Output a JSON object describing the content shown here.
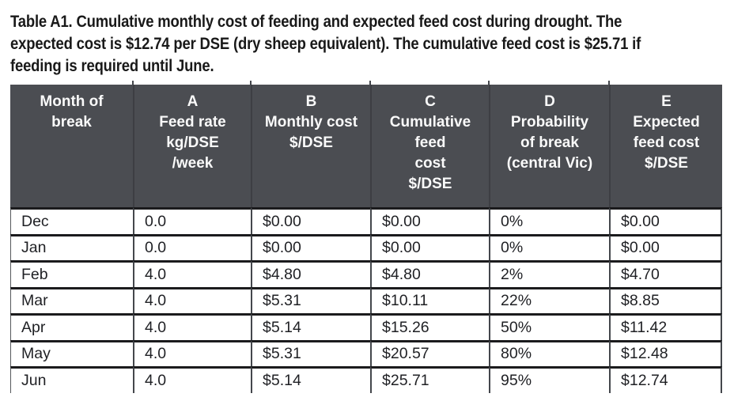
{
  "caption": {
    "lines": [
      "Table A1. Cumulative monthly cost of feeding and expected feed cost during drought. The",
      "expected cost is $12.74 per DSE (dry sheep equivalent). The cumulative feed cost is $25.71 if",
      "feeding is required until June."
    ]
  },
  "table": {
    "columns": [
      {
        "id": "month",
        "lines": [
          "Month of",
          "break"
        ]
      },
      {
        "id": "A",
        "lines": [
          "A",
          "Feed rate",
          "kg/DSE",
          "/week"
        ]
      },
      {
        "id": "B",
        "lines": [
          "B",
          "Monthly cost",
          "$/DSE"
        ]
      },
      {
        "id": "C",
        "lines": [
          "C",
          "Cumulative",
          "feed",
          "cost",
          "$/DSE"
        ]
      },
      {
        "id": "D",
        "lines": [
          "D",
          "Probability",
          "of break",
          "(central Vic)"
        ]
      },
      {
        "id": "E",
        "lines": [
          "E",
          "Expected",
          "feed cost",
          "$/DSE"
        ]
      }
    ],
    "rows": [
      {
        "cells": [
          "Dec",
          "0.0",
          "$0.00",
          "$0.00",
          "0%",
          "$0.00"
        ]
      },
      {
        "cells": [
          "Jan",
          "0.0",
          "$0.00",
          "$0.00",
          "0%",
          "$0.00"
        ]
      },
      {
        "cells": [
          "Feb",
          "4.0",
          "$4.80",
          "$4.80",
          "2%",
          "$4.70"
        ]
      },
      {
        "cells": [
          "Mar",
          "4.0",
          "$5.31",
          "$10.11",
          "22%",
          "$8.85"
        ]
      },
      {
        "cells": [
          "Apr",
          "4.0",
          "$5.14",
          "$15.26",
          "50%",
          "$11.42"
        ]
      },
      {
        "cells": [
          "May",
          "4.0",
          "$5.31",
          "$20.57",
          "80%",
          "$12.48"
        ]
      },
      {
        "cells": [
          "Jun",
          "4.0",
          "$5.14",
          "$25.71",
          "95%",
          "$12.74"
        ]
      }
    ]
  },
  "colors": {
    "page_bg": "#ffffff",
    "header_bg": "#4b4d52",
    "header_text": "#fafafa",
    "row_divider": "#1b1b1d",
    "column_divider": "#44474c",
    "body_text": "#1f2024",
    "caption_text": "#191919"
  }
}
